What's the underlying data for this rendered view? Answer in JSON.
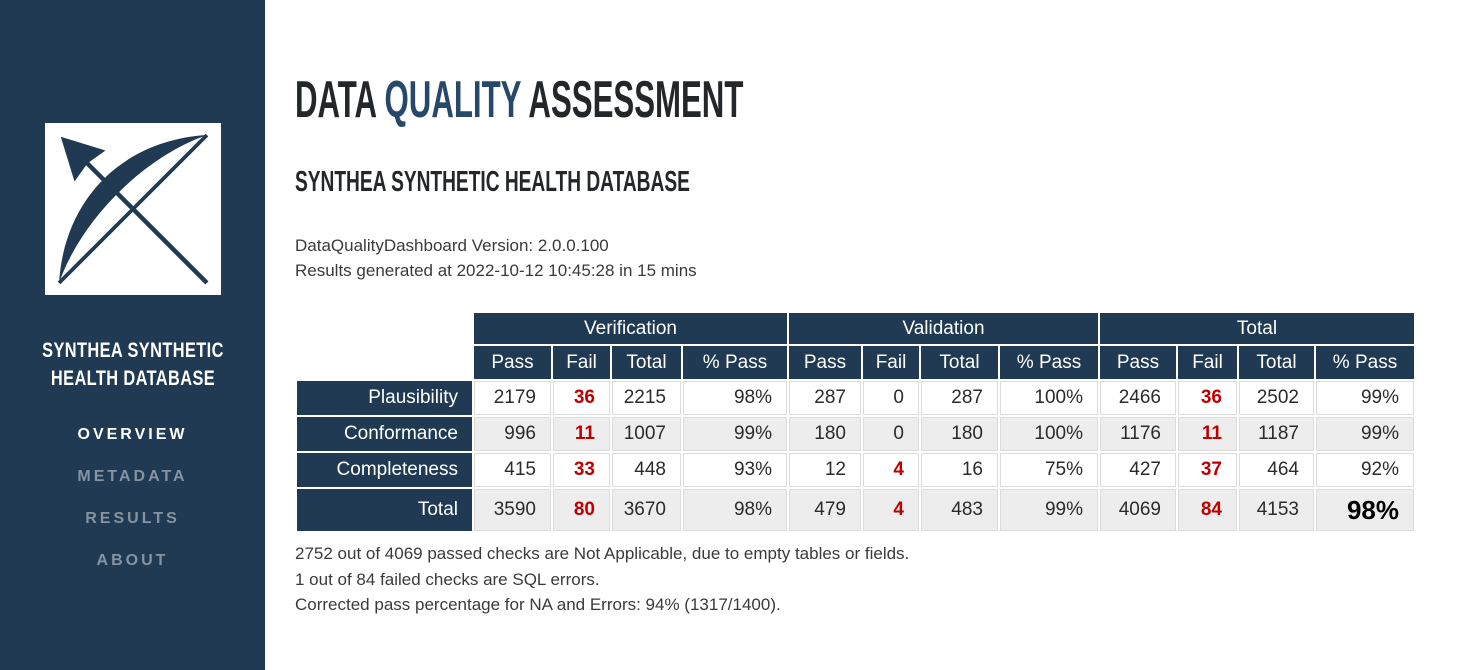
{
  "sidebar": {
    "database_name": "SYNTHEA SYNTHETIC HEALTH DATABASE",
    "nav": [
      {
        "label": "OVERVIEW",
        "active": true
      },
      {
        "label": "METADATA",
        "active": false
      },
      {
        "label": "RESULTS",
        "active": false
      },
      {
        "label": "ABOUT",
        "active": false
      }
    ]
  },
  "header": {
    "title_prefix": "DATA",
    "title_highlight": "QUALITY",
    "title_suffix": "ASSESSMENT",
    "subtitle": "SYNTHEA SYNTHETIC HEALTH DATABASE"
  },
  "meta": {
    "version_line": "DataQualityDashboard Version: 2.0.0.100",
    "generated_line": "Results generated at 2022-10-12 10:45:28 in 15 mins"
  },
  "table": {
    "groups": [
      "Verification",
      "Validation",
      "Total"
    ],
    "sub_headers": [
      "Pass",
      "Fail",
      "Total",
      "% Pass"
    ],
    "rows": [
      {
        "label": "Plausibility",
        "values": [
          "2179",
          "36",
          "2215",
          "98%",
          "287",
          "0",
          "287",
          "100%",
          "2466",
          "36",
          "2502",
          "99%"
        ],
        "is_total": false
      },
      {
        "label": "Conformance",
        "values": [
          "996",
          "11",
          "1007",
          "99%",
          "180",
          "0",
          "180",
          "100%",
          "1176",
          "11",
          "1187",
          "99%"
        ],
        "is_total": false
      },
      {
        "label": "Completeness",
        "values": [
          "415",
          "33",
          "448",
          "93%",
          "12",
          "4",
          "16",
          "75%",
          "427",
          "37",
          "464",
          "92%"
        ],
        "is_total": false
      },
      {
        "label": "Total",
        "values": [
          "3590",
          "80",
          "3670",
          "98%",
          "479",
          "4",
          "483",
          "99%",
          "4069",
          "84",
          "4153",
          "98%"
        ],
        "is_total": true
      }
    ]
  },
  "notes": [
    "2752 out of 4069 passed checks are Not Applicable, due to empty tables or fields.",
    "1 out of 84 failed checks are SQL errors.",
    "Corrected pass percentage for NA and Errors: 94% (1317/1400)."
  ],
  "colors": {
    "navy": "#1F3A52",
    "title_highlight": "#26486A",
    "fail_red": "#C00000",
    "zebra_row": "#EDEDED"
  }
}
